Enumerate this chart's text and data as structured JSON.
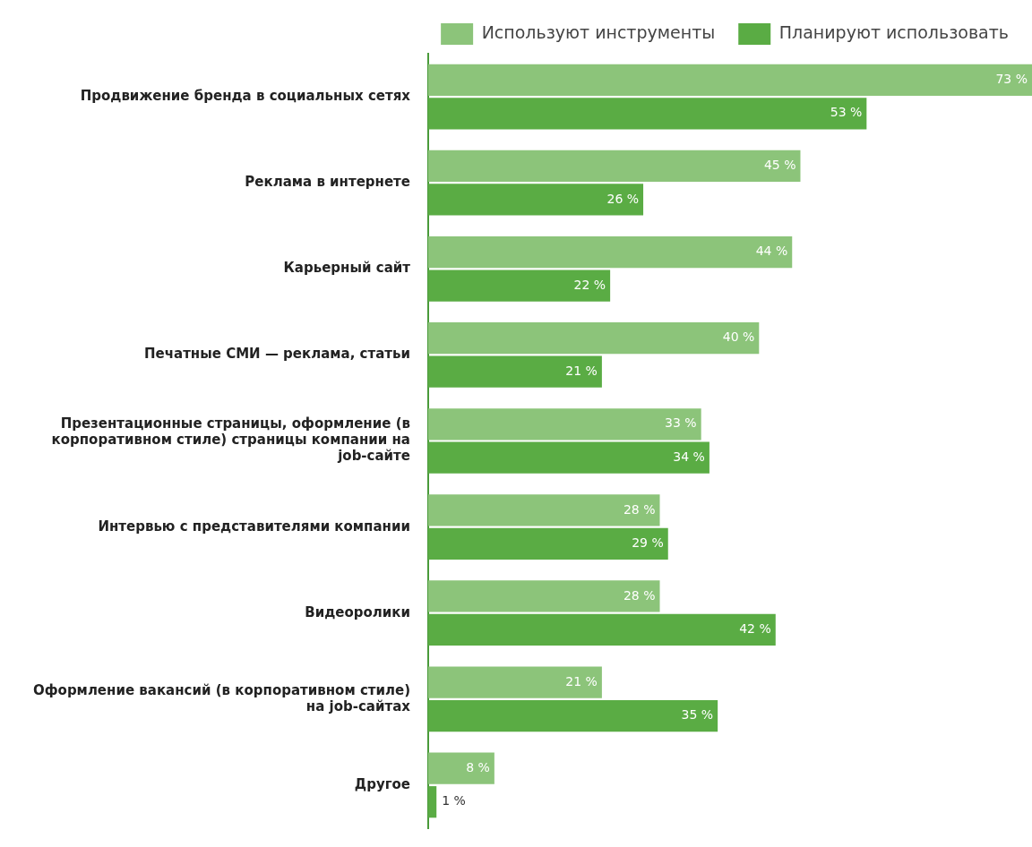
{
  "chart_data": {
    "type": "bar",
    "orientation": "horizontal",
    "legend": "top right",
    "grid": false,
    "categories": [
      "Продвижение бренда в социальных сетях",
      "Реклама в интернете",
      "Карьерный сайт",
      "Печатные СМИ — реклама, статьи",
      "Презентационные страницы, оформление (в корпоративном стиле) страницы компании на job-сайте",
      "Интервью с представителями компании",
      "Видеоролики",
      "Оформление вакансий (в корпоративном стиле) на job-сайтах",
      "Другое"
    ],
    "series": [
      {
        "name": "Используют инструменты",
        "color": "#8cc47a",
        "values": [
          73,
          45,
          44,
          40,
          33,
          28,
          28,
          21,
          8
        ],
        "value_labels": [
          "73 %",
          "45 %",
          "44 %",
          "40 %",
          "33 %",
          "28 %",
          "28 %",
          "21 %",
          "8 %"
        ]
      },
      {
        "name": "Планируют использовать",
        "color": "#5aac44",
        "values": [
          53,
          26,
          22,
          21,
          34,
          29,
          42,
          35,
          1
        ],
        "value_labels": [
          "53 %",
          "26 %",
          "22 %",
          "21 %",
          "34 %",
          "29 %",
          "42 %",
          "35 %",
          "1 %"
        ]
      }
    ]
  }
}
